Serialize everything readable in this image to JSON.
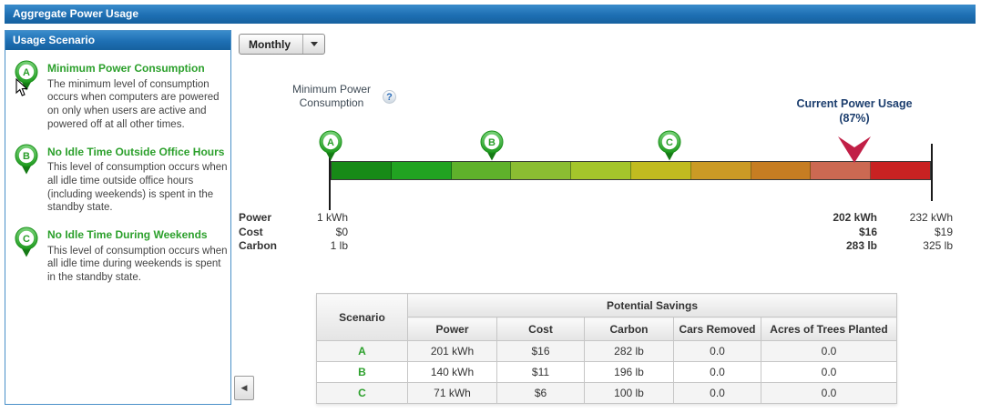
{
  "header": {
    "title": "Aggregate Power Usage"
  },
  "colors": {
    "header_blue": "#1e6fb3",
    "scenario_green": "#2ca02c",
    "current_arrow_red": "#c11f46"
  },
  "sidebar": {
    "title": "Usage Scenario",
    "collapse_icon": "◀",
    "items": [
      {
        "letter": "A",
        "title": "Minimum Power Consumption",
        "description": "The minimum level of consumption occurs when computers are powered on only when users are active and powered off at all other times."
      },
      {
        "letter": "B",
        "title": "No Idle Time Outside Office Hours",
        "description": "This level of consumption occurs when all idle time outside office hours (including weekends) is spent in the standby state."
      },
      {
        "letter": "C",
        "title": "No Idle Time During Weekends",
        "description": "This level of consumption occurs when all idle time during weekends is spent in the standby state."
      }
    ]
  },
  "toolbar": {
    "period": {
      "value": "Monthly"
    }
  },
  "gauge": {
    "min_label_line1": "Minimum Power",
    "min_label_line2": "Consumption",
    "help_icon": "?",
    "current_label_line1": "Current Power Usage",
    "current_label_line2": "(87%)",
    "current_pos_pct": 87.3,
    "arrow_color": "#c11f46",
    "segments": [
      "#178a17",
      "#21a321",
      "#5fb12b",
      "#8bbd32",
      "#a4c52b",
      "#c1bb20",
      "#cb9a25",
      "#c67d22",
      "#cc6952",
      "#c92222"
    ],
    "markers": [
      {
        "letter": "A",
        "pos_pct": 0
      },
      {
        "letter": "B",
        "pos_pct": 26.9
      },
      {
        "letter": "C",
        "pos_pct": 56.4
      }
    ],
    "metrics": [
      {
        "label": "Power",
        "min": "1 kWh",
        "current": "202 kWh",
        "max": "232 kWh"
      },
      {
        "label": "Cost",
        "min": "$0",
        "current": "$16",
        "max": "$19"
      },
      {
        "label": "Carbon",
        "min": "1 lb",
        "current": "283 lb",
        "max": "325 lb"
      }
    ]
  },
  "table": {
    "scenario_header": "Scenario",
    "group_header": "Potential Savings",
    "columns": [
      "Power",
      "Cost",
      "Carbon",
      "Cars Removed",
      "Acres of Trees Planted"
    ],
    "rows": [
      {
        "scenario": "A",
        "power": "201 kWh",
        "cost": "$16",
        "carbon": "282 lb",
        "cars": "0.0",
        "acres": "0.0"
      },
      {
        "scenario": "B",
        "power": "140 kWh",
        "cost": "$11",
        "carbon": "196 lb",
        "cars": "0.0",
        "acres": "0.0"
      },
      {
        "scenario": "C",
        "power": "71 kWh",
        "cost": "$6",
        "carbon": "100 lb",
        "cars": "0.0",
        "acres": "0.0"
      }
    ]
  }
}
